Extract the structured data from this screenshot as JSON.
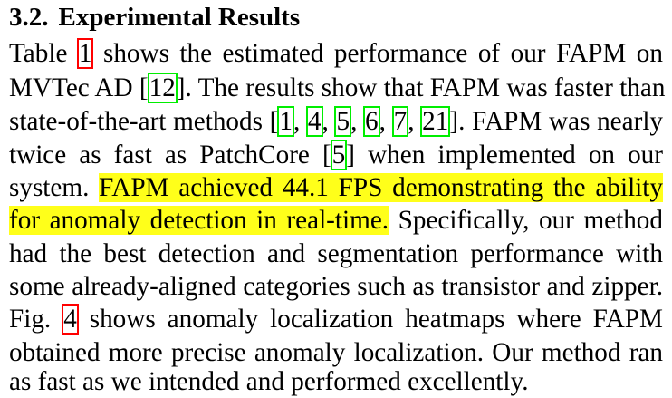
{
  "section": {
    "number": "3.2.",
    "title": "Experimental Results"
  },
  "paragraph": {
    "l1": {
      "a": "Table ",
      "r1": "1",
      "b": " shows the estimated performance of our FAPM on"
    },
    "l2": {
      "a": "MVTec AD [",
      "r1": "12",
      "b": "]. The results show that FAPM was faster than"
    },
    "l3": {
      "a": "state-of-the-art methods [",
      "r1": "1",
      "s1": ", ",
      "r2": "4",
      "s2": ", ",
      "r3": "5",
      "s3": ", ",
      "r4": "6",
      "s4": ", ",
      "r5": "7",
      "s5": ", ",
      "r6": "21",
      "b": "]. FAPM was nearly"
    },
    "l4": {
      "a": "twice as fast as PatchCore [",
      "r1": "5",
      "b": "] when implemented on our"
    },
    "l5": {
      "a": "system. ",
      "h": "FAPM achieved 44.1 FPS demonstrating the ability"
    },
    "l6": {
      "h": "for anomaly detection in real-time.",
      "b": " Specifically, our method"
    },
    "l7": "had the best detection and segmentation performance with",
    "l8": "some already-aligned categories such as transistor and zipper.",
    "l9": {
      "a": "Fig. ",
      "r1": "4",
      "b": " shows anomaly localization heatmaps where FAPM"
    },
    "l10": "obtained more precise anomaly localization. Our method ran",
    "l11": "as fast as we intended and performed excellently."
  },
  "colors": {
    "highlight": "#ffff1a",
    "figure_ref_box": "#ff0000",
    "citation_box": "#00ee00"
  }
}
